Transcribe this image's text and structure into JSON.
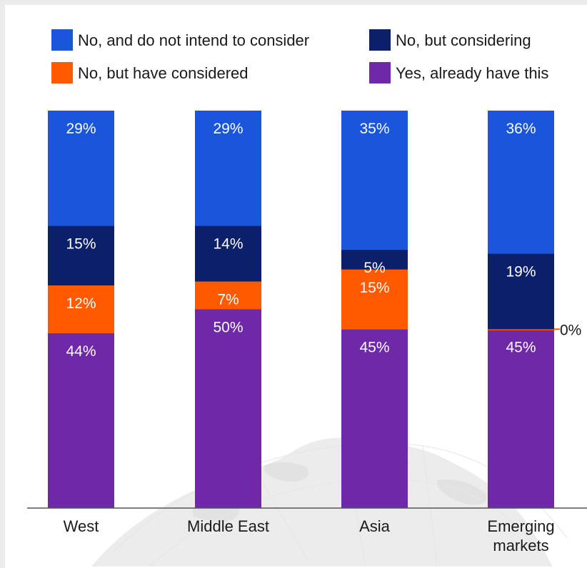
{
  "chart_data": {
    "type": "bar",
    "stacked": true,
    "percent": true,
    "categories": [
      "West",
      "Middle East",
      "Asia",
      "Emerging markets"
    ],
    "category_lines": [
      [
        "West"
      ],
      [
        "Middle East"
      ],
      [
        "Asia"
      ],
      [
        "Emerging",
        "markets"
      ]
    ],
    "series": [
      {
        "name": "Yes, already have this",
        "color": "#6e28a8",
        "values": [
          44,
          50,
          45,
          45
        ]
      },
      {
        "name": "No, but have considered",
        "color": "#ff5a00",
        "values": [
          12,
          7,
          15,
          0
        ]
      },
      {
        "name": "No, but considering",
        "color": "#0b1f6b",
        "values": [
          15,
          14,
          5,
          19
        ]
      },
      {
        "name": "No, and do not intend to consider",
        "color": "#1a56db",
        "values": [
          29,
          29,
          35,
          36
        ]
      }
    ],
    "value_labels": [
      [
        "44%",
        "50%",
        "45%",
        "45%"
      ],
      [
        "12%",
        "7%",
        "15%",
        "0%"
      ],
      [
        "15%",
        "14%",
        "5%",
        "19%"
      ],
      [
        "29%",
        "29%",
        "35%",
        "36%"
      ]
    ],
    "legend_order": [
      3,
      2,
      1,
      0
    ],
    "legend_position": "top",
    "grid": false,
    "ylim": [
      0,
      100
    ],
    "background": "#ebebeb",
    "panel_color": "#ffffff"
  }
}
